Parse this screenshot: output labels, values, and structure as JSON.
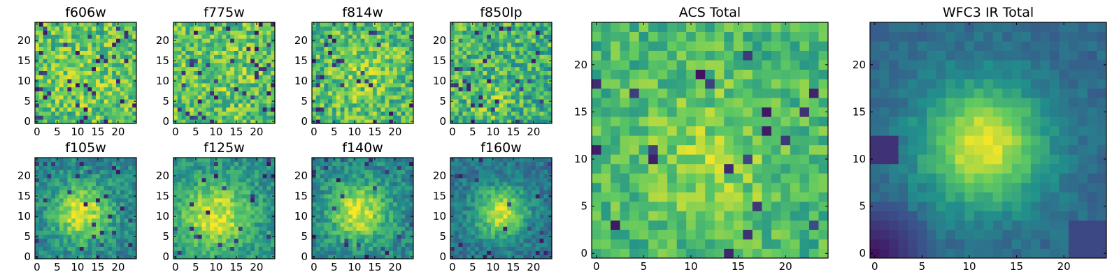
{
  "figure": {
    "colormap": "viridis",
    "colors": [
      "#440154",
      "#3b528b",
      "#21918c",
      "#5ec962",
      "#fde725"
    ],
    "description": "Postage-stamp cutouts of a source in each HST filter plus ACS and WFC3 IR totals"
  },
  "chart_data": [
    {
      "type": "heatmap",
      "id": "f606w",
      "title": "f606w",
      "grid": [
        25,
        25
      ],
      "xlim": [
        0,
        24
      ],
      "ylim": [
        0,
        24
      ],
      "xticks": [
        0,
        5,
        10,
        15,
        20
      ],
      "yticks": [
        0,
        5,
        10,
        15,
        20
      ],
      "xtick_labels": [
        "0",
        "5",
        "10",
        "15",
        "20"
      ],
      "ytick_labels": [
        "0",
        "5",
        "10",
        "15",
        "20"
      ],
      "pattern": "noise",
      "base": 0.72,
      "peak": 0.05,
      "peak_center": [
        12,
        12
      ],
      "peak_sigma": 6,
      "noise": 0.22,
      "seed": 11,
      "dark_fraction": 0.06
    },
    {
      "type": "heatmap",
      "id": "f775w",
      "title": "f775w",
      "grid": [
        25,
        25
      ],
      "xlim": [
        0,
        24
      ],
      "ylim": [
        0,
        24
      ],
      "xticks": [
        0,
        5,
        10,
        15,
        20
      ],
      "yticks": [
        0,
        5,
        10,
        15,
        20
      ],
      "xtick_labels": [
        "0",
        "5",
        "10",
        "15",
        "20"
      ],
      "ytick_labels": [
        "0",
        "5",
        "10",
        "15",
        "20"
      ],
      "pattern": "noise",
      "base": 0.72,
      "peak": 0.05,
      "peak_center": [
        12,
        12
      ],
      "peak_sigma": 6,
      "noise": 0.22,
      "seed": 23,
      "dark_fraction": 0.06
    },
    {
      "type": "heatmap",
      "id": "f814w",
      "title": "f814w",
      "grid": [
        25,
        25
      ],
      "xlim": [
        0,
        24
      ],
      "ylim": [
        0,
        24
      ],
      "xticks": [
        0,
        5,
        10,
        15,
        20
      ],
      "yticks": [
        0,
        5,
        10,
        15,
        20
      ],
      "xtick_labels": [
        "0",
        "5",
        "10",
        "15",
        "20"
      ],
      "ytick_labels": [
        "0",
        "5",
        "10",
        "15",
        "20"
      ],
      "pattern": "noise",
      "base": 0.68,
      "peak": 0.12,
      "peak_center": [
        12,
        12
      ],
      "peak_sigma": 6,
      "noise": 0.22,
      "seed": 37,
      "dark_fraction": 0.05
    },
    {
      "type": "heatmap",
      "id": "f850lp",
      "title": "f850lp",
      "grid": [
        25,
        25
      ],
      "xlim": [
        0,
        24
      ],
      "ylim": [
        0,
        24
      ],
      "xticks": [
        0,
        5,
        10,
        15,
        20
      ],
      "yticks": [
        0,
        5,
        10,
        15,
        20
      ],
      "xtick_labels": [
        "0",
        "5",
        "10",
        "15",
        "20"
      ],
      "ytick_labels": [
        "0",
        "5",
        "10",
        "15",
        "20"
      ],
      "pattern": "noise",
      "base": 0.66,
      "peak": 0.12,
      "peak_center": [
        9,
        6
      ],
      "peak_sigma": 3,
      "noise": 0.24,
      "seed": 53,
      "dark_fraction": 0.06
    },
    {
      "type": "heatmap",
      "id": "f105w",
      "title": "f105w",
      "grid": [
        25,
        25
      ],
      "xlim": [
        0,
        24
      ],
      "ylim": [
        0,
        24
      ],
      "xticks": [
        0,
        5,
        10,
        15,
        20
      ],
      "yticks": [
        0,
        5,
        10,
        15,
        20
      ],
      "xtick_labels": [
        "0",
        "5",
        "10",
        "15",
        "20"
      ],
      "ytick_labels": [
        "0",
        "5",
        "10",
        "15",
        "20"
      ],
      "pattern": "blob",
      "base": 0.45,
      "peak": 0.5,
      "peak_center": [
        11,
        11
      ],
      "peak_sigma": 5,
      "noise": 0.14,
      "seed": 71,
      "dark_fraction": 0.04
    },
    {
      "type": "heatmap",
      "id": "f125w",
      "title": "f125w",
      "grid": [
        25,
        25
      ],
      "xlim": [
        0,
        24
      ],
      "ylim": [
        0,
        24
      ],
      "xticks": [
        0,
        5,
        10,
        15,
        20
      ],
      "yticks": [
        0,
        5,
        10,
        15,
        20
      ],
      "xtick_labels": [
        "0",
        "5",
        "10",
        "15",
        "20"
      ],
      "ytick_labels": [
        "0",
        "5",
        "10",
        "15",
        "20"
      ],
      "pattern": "blob",
      "base": 0.5,
      "peak": 0.45,
      "peak_center": [
        10,
        10
      ],
      "peak_sigma": 6,
      "noise": 0.14,
      "seed": 89,
      "dark_fraction": 0.03
    },
    {
      "type": "heatmap",
      "id": "f140w",
      "title": "f140w",
      "grid": [
        25,
        25
      ],
      "xlim": [
        0,
        24
      ],
      "ylim": [
        0,
        24
      ],
      "xticks": [
        0,
        5,
        10,
        15,
        20
      ],
      "yticks": [
        0,
        5,
        10,
        15,
        20
      ],
      "xtick_labels": [
        "0",
        "5",
        "10",
        "15",
        "20"
      ],
      "ytick_labels": [
        "0",
        "5",
        "10",
        "15",
        "20"
      ],
      "pattern": "blob",
      "base": 0.45,
      "peak": 0.5,
      "peak_center": [
        11,
        11
      ],
      "peak_sigma": 5,
      "noise": 0.14,
      "seed": 97,
      "dark_fraction": 0.04
    },
    {
      "type": "heatmap",
      "id": "f160w",
      "title": "f160w",
      "grid": [
        25,
        25
      ],
      "xlim": [
        0,
        24
      ],
      "ylim": [
        0,
        24
      ],
      "xticks": [
        0,
        5,
        10,
        15,
        20
      ],
      "yticks": [
        0,
        5,
        10,
        15,
        20
      ],
      "xtick_labels": [
        "0",
        "5",
        "10",
        "15",
        "20"
      ],
      "ytick_labels": [
        "0",
        "5",
        "10",
        "15",
        "20"
      ],
      "pattern": "blob",
      "base": 0.38,
      "peak": 0.55,
      "peak_center": [
        12,
        11
      ],
      "peak_sigma": 4.5,
      "noise": 0.12,
      "seed": 113,
      "dark_fraction": 0.03
    },
    {
      "type": "heatmap",
      "id": "acs-total",
      "title": "ACS Total",
      "grid": [
        25,
        25
      ],
      "xlim": [
        0,
        24
      ],
      "ylim": [
        0,
        24
      ],
      "xticks": [
        0,
        5,
        10,
        15,
        20
      ],
      "yticks": [
        0,
        5,
        10,
        15,
        20
      ],
      "xtick_labels": [
        "0",
        "5",
        "10",
        "15",
        "20"
      ],
      "ytick_labels": [
        "0",
        "5",
        "10",
        "15",
        "20"
      ],
      "pattern": "noise",
      "base": 0.66,
      "peak": 0.16,
      "peak_center": [
        12,
        10
      ],
      "peak_sigma": 6,
      "noise": 0.16,
      "seed": 131,
      "dark_fraction": 0.035
    },
    {
      "type": "heatmap",
      "id": "wfc3-ir-total",
      "title": "WFC3 IR Total",
      "grid": [
        25,
        25
      ],
      "xlim": [
        0,
        24
      ],
      "ylim": [
        0,
        24
      ],
      "xticks": [
        0,
        5,
        10,
        15,
        20
      ],
      "yticks": [
        0,
        5,
        10,
        15,
        20
      ],
      "xtick_labels": [
        "0",
        "5",
        "10",
        "15",
        "20"
      ],
      "ytick_labels": [
        "0",
        "5",
        "10",
        "15",
        "20"
      ],
      "pattern": "blob",
      "base": 0.34,
      "peak": 0.64,
      "peak_center": [
        11.5,
        11.5
      ],
      "peak_sigma": 4.5,
      "noise": 0.06,
      "seed": 151,
      "dark_fraction": 0.0,
      "dark_corner": "bottom-left"
    }
  ]
}
